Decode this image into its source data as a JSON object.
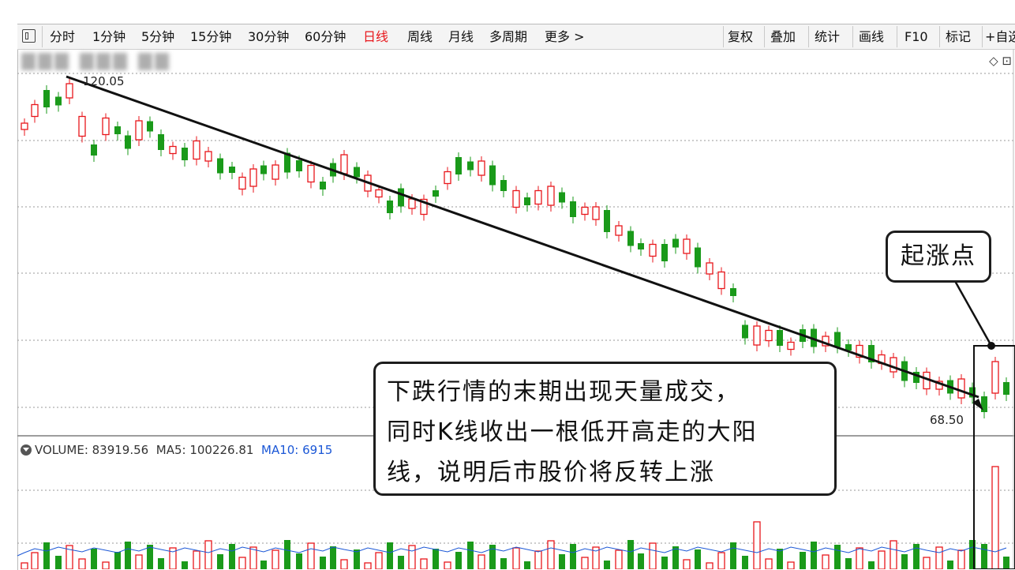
{
  "toolbar": {
    "periods": [
      "分时",
      "1分钟",
      "5分钟",
      "15分钟",
      "30分钟",
      "60分钟",
      "日线",
      "周线",
      "月线",
      "多周期",
      "更多 >"
    ],
    "active_period": "日线",
    "actions": [
      "复权",
      "叠加",
      "统计",
      "画线",
      "F10",
      "标记",
      "+自选"
    ]
  },
  "chart": {
    "high_label": "120.05",
    "low_label": "68.50",
    "top_icons": "◇ ⊡"
  },
  "volume_bar": {
    "volume_label": "VOLUME: 83919.56",
    "ma5_label": "MA5: 100226.81",
    "ma10_label": "MA10: 6915"
  },
  "annotations": {
    "main_text_lines": [
      "下跌行情的末期出现天量成交，",
      "同时K线收出一根低开高走的大阳",
      "线，说明后市股价将反转上涨"
    ],
    "rise_point": "起涨点"
  },
  "colors": {
    "up": "#e8161b",
    "down": "#1a9a1a",
    "grid": "#9a9a9a",
    "trendline": "#111111",
    "ma10": "#1b57d6"
  },
  "chart_data": {
    "type": "candlestick",
    "price_labels": {
      "high": 120.05,
      "low": 68.5
    },
    "series_volume_labels": {
      "VOLUME": 83919.56,
      "MA5": 100226.81,
      "MA10": 6915
    }
  }
}
